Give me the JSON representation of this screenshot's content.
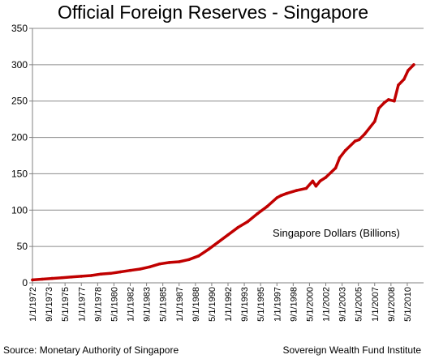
{
  "chart_data": {
    "type": "line",
    "title": "Official Foreign Reserves - Singapore",
    "xlabel": "",
    "ylabel": "",
    "ylim": [
      0,
      350
    ],
    "yticks": [
      0,
      50,
      100,
      150,
      200,
      250,
      300,
      350
    ],
    "xtick_labels": [
      "1/1/1972",
      "9/1/1973",
      "5/1/1975",
      "1/1/1977",
      "9/1/1978",
      "5/1/1980",
      "1/1/1982",
      "9/1/1983",
      "5/1/1985",
      "1/1/1987",
      "9/1/1988",
      "5/1/1990",
      "1/1/1992",
      "9/1/1993",
      "5/1/1995",
      "1/1/1997",
      "9/1/1998",
      "5/1/2000",
      "1/1/2002",
      "9/1/2003",
      "5/1/2005",
      "1/1/2007",
      "9/1/2008",
      "5/1/2010"
    ],
    "grid": "horizontal",
    "series_color": "#c00000",
    "annotation": "Singapore Dollars (Billions)",
    "x": [
      "1972-01",
      "1973-01",
      "1974-01",
      "1975-01",
      "1976-01",
      "1977-01",
      "1978-01",
      "1979-01",
      "1980-01",
      "1981-01",
      "1982-01",
      "1983-01",
      "1984-01",
      "1985-01",
      "1986-01",
      "1987-01",
      "1988-01",
      "1989-01",
      "1990-01",
      "1991-01",
      "1992-01",
      "1993-01",
      "1994-01",
      "1995-01",
      "1996-01",
      "1997-01",
      "1997-06",
      "1998-01",
      "1999-01",
      "2000-01",
      "2000-09",
      "2001-01",
      "2001-06",
      "2002-01",
      "2003-01",
      "2003-06",
      "2004-01",
      "2005-01",
      "2005-06",
      "2006-01",
      "2007-01",
      "2007-06",
      "2008-01",
      "2008-06",
      "2009-01",
      "2009-06",
      "2010-01",
      "2010-06",
      "2011-01"
    ],
    "values": [
      4,
      5,
      6,
      7,
      8,
      9,
      10,
      12,
      13,
      15,
      17,
      19,
      22,
      26,
      28,
      29,
      32,
      37,
      46,
      56,
      66,
      76,
      84,
      95,
      105,
      117,
      120,
      123,
      127,
      130,
      140,
      133,
      140,
      145,
      158,
      172,
      182,
      195,
      197,
      205,
      222,
      240,
      248,
      252,
      250,
      272,
      280,
      292,
      300
    ],
    "source": "Source: Monetary Authority of Singapore",
    "credit": "Sovereign Wealth Fund Institute"
  }
}
